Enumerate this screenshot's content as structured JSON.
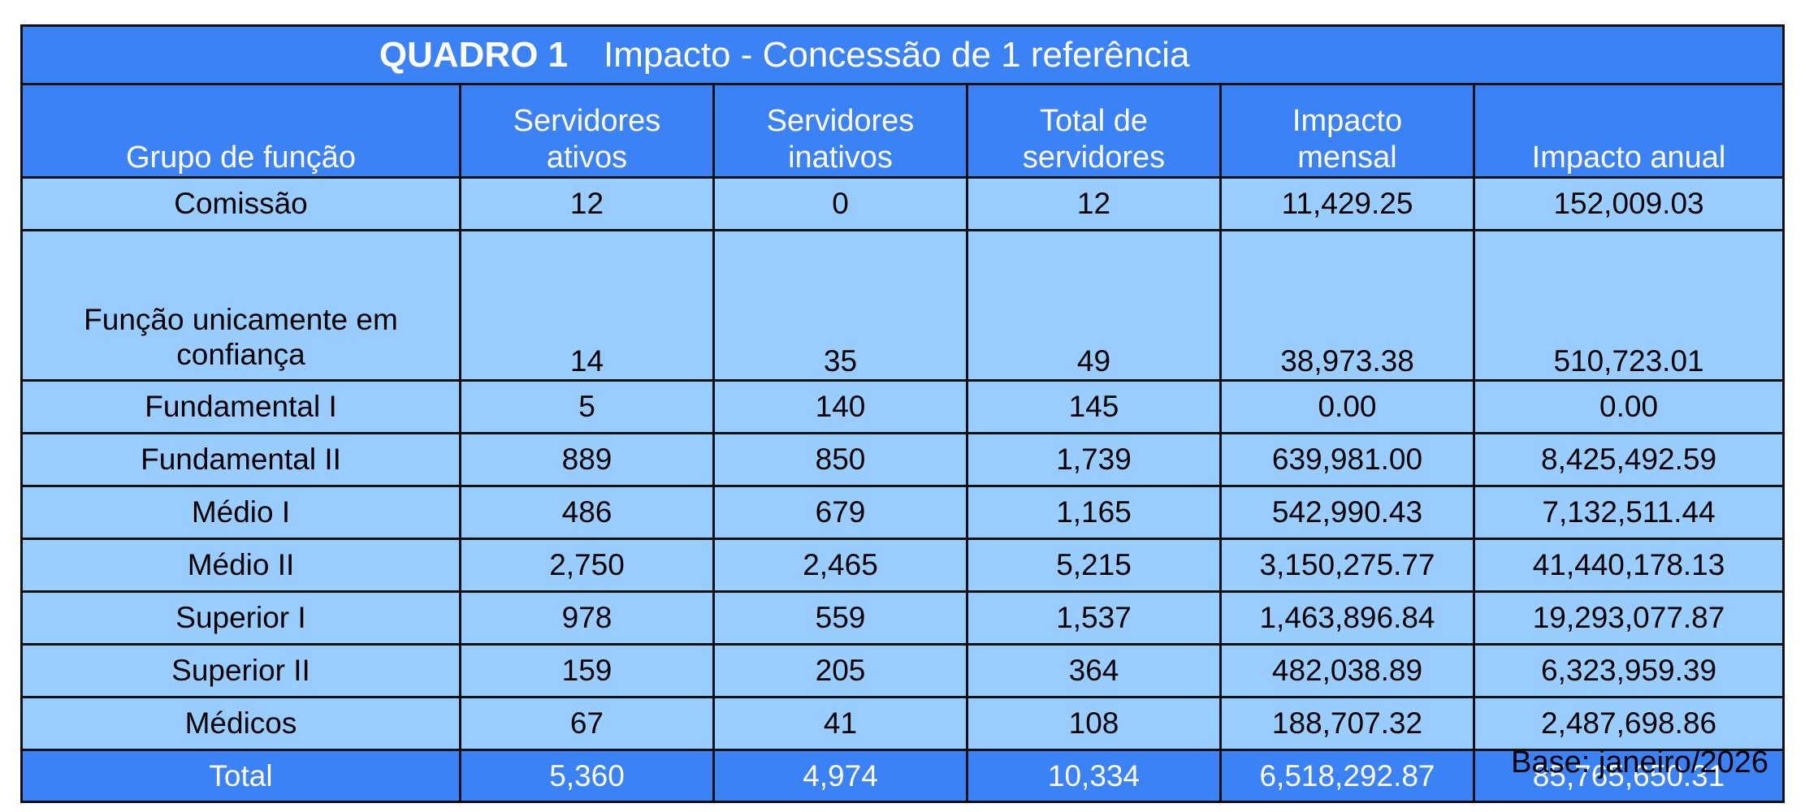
{
  "title": {
    "code": "QUADRO 1",
    "text": "Impacto - Concessão de 1 referência"
  },
  "columns": [
    "Grupo de função",
    "Servidores ativos",
    "Servidores inativos",
    "Total de servidores",
    "Impacto mensal",
    "Impacto anual"
  ],
  "rows": [
    [
      "Comissão",
      "12",
      "0",
      "12",
      "11,429.25",
      "152,009.03"
    ],
    [
      "Função unicamente em confiança",
      "14",
      "35",
      "49",
      "38,973.38",
      "510,723.01"
    ],
    [
      "Fundamental I",
      "5",
      "140",
      "145",
      "0.00",
      "0.00"
    ],
    [
      "Fundamental II",
      "889",
      "850",
      "1,739",
      "639,981.00",
      "8,425,492.59"
    ],
    [
      "Médio I",
      "486",
      "679",
      "1,165",
      "542,990.43",
      "7,132,511.44"
    ],
    [
      "Médio II",
      "2,750",
      "2,465",
      "5,215",
      "3,150,275.77",
      "41,440,178.13"
    ],
    [
      "Superior I",
      "978",
      "559",
      "1,537",
      "1,463,896.84",
      "19,293,077.87"
    ],
    [
      "Superior II",
      "159",
      "205",
      "364",
      "482,038.89",
      "6,323,959.39"
    ],
    [
      "Médicos",
      "67",
      "41",
      "108",
      "188,707.32",
      "2,487,698.86"
    ]
  ],
  "total": [
    "Total",
    "5,360",
    "4,974",
    "10,334",
    "6,518,292.87",
    "85,765,650.31"
  ],
  "base_note": "Base: janeiro/2026",
  "colors": {
    "header_bg": "#3b82f6",
    "row_bg": "#99ccff",
    "border": "#111111"
  },
  "chart_data": {
    "type": "table",
    "title": "Impacto - Concessão de 1 referência",
    "columns": [
      "Grupo de função",
      "Servidores ativos",
      "Servidores inativos",
      "Total de servidores",
      "Impacto mensal",
      "Impacto anual"
    ],
    "rows": [
      [
        "Comissão",
        12,
        0,
        12,
        11429.25,
        152009.03
      ],
      [
        "Função unicamente em confiança",
        14,
        35,
        49,
        38973.38,
        510723.01
      ],
      [
        "Fundamental I",
        5,
        140,
        145,
        0.0,
        0.0
      ],
      [
        "Fundamental II",
        889,
        850,
        1739,
        639981.0,
        8425492.59
      ],
      [
        "Médio I",
        486,
        679,
        1165,
        542990.43,
        7132511.44
      ],
      [
        "Médio II",
        2750,
        2465,
        5215,
        3150275.77,
        41440178.13
      ],
      [
        "Superior I",
        978,
        559,
        1537,
        1463896.84,
        19293077.87
      ],
      [
        "Superior II",
        159,
        205,
        364,
        482038.89,
        6323959.39
      ],
      [
        "Médicos",
        67,
        41,
        108,
        188707.32,
        2487698.86
      ]
    ],
    "total": [
      "Total",
      5360,
      4974,
      10334,
      6518292.87,
      85765650.31
    ]
  }
}
